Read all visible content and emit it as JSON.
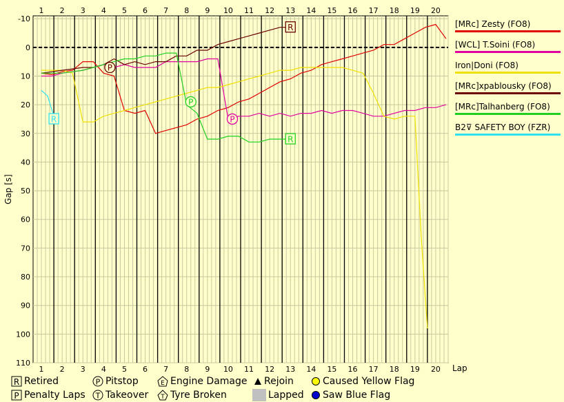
{
  "chart_data": {
    "type": "line",
    "title": "",
    "xlabel": "Lap",
    "ylabel": "Gap [s]",
    "x_ticks": [
      1,
      2,
      3,
      4,
      5,
      6,
      7,
      8,
      9,
      10,
      11,
      12,
      13,
      14,
      15,
      16,
      17,
      18,
      19,
      20
    ],
    "y_ticks": [
      -10,
      0,
      10,
      20,
      30,
      40,
      50,
      60,
      70,
      80,
      90,
      100,
      110
    ],
    "xlim": [
      0.6,
      20.6
    ],
    "ylim": [
      -11,
      110
    ],
    "grid": true,
    "legend_position": "right",
    "series": [
      {
        "name": "[MRc] Zesty (FO8)",
        "color": "#e00000",
        "points": [
          [
            1,
            9
          ],
          [
            1.5,
            9.5
          ],
          [
            2,
            8.5
          ],
          [
            2.5,
            8
          ],
          [
            3,
            5
          ],
          [
            3.5,
            5
          ],
          [
            4,
            9
          ],
          [
            4.5,
            10
          ],
          [
            5,
            22
          ],
          [
            5.5,
            23
          ],
          [
            6,
            22
          ],
          [
            6.5,
            30
          ],
          [
            7,
            29
          ],
          [
            7.5,
            28
          ],
          [
            8,
            27
          ],
          [
            8.5,
            25
          ],
          [
            9,
            24
          ],
          [
            9.5,
            22
          ],
          [
            10,
            21
          ],
          [
            10.5,
            19
          ],
          [
            11,
            18
          ],
          [
            11.5,
            16
          ],
          [
            12,
            14
          ],
          [
            12.5,
            12
          ],
          [
            13,
            11
          ],
          [
            13.5,
            9
          ],
          [
            14,
            8
          ],
          [
            14.5,
            6
          ],
          [
            15,
            5
          ],
          [
            15.5,
            4
          ],
          [
            16,
            3
          ],
          [
            16.5,
            2
          ],
          [
            17,
            1
          ],
          [
            17.5,
            -1
          ],
          [
            18,
            -1
          ],
          [
            18.5,
            -3
          ],
          [
            19,
            -5
          ],
          [
            19.5,
            -7
          ],
          [
            20,
            -8
          ],
          [
            20.5,
            -3
          ]
        ]
      },
      {
        "name": "[WCL] T.Soini (FO8)",
        "color": "#e000a0",
        "points": [
          [
            1,
            10
          ],
          [
            1.5,
            10
          ],
          [
            2,
            9
          ],
          [
            2.5,
            8.5
          ],
          [
            3,
            8
          ],
          [
            3.5,
            7
          ],
          [
            4,
            6
          ],
          [
            4.5,
            7
          ],
          [
            5,
            6
          ],
          [
            5.5,
            7
          ],
          [
            6,
            7
          ],
          [
            6.5,
            7
          ],
          [
            7,
            5
          ],
          [
            7.5,
            5
          ],
          [
            8,
            5
          ],
          [
            8.5,
            5
          ],
          [
            9,
            4
          ],
          [
            9.5,
            4
          ],
          [
            10,
            25
          ],
          [
            10.5,
            24
          ],
          [
            11,
            24
          ],
          [
            11.5,
            23
          ],
          [
            12,
            24
          ],
          [
            12.5,
            23
          ],
          [
            13,
            24
          ],
          [
            13.5,
            23
          ],
          [
            14,
            23
          ],
          [
            14.5,
            22
          ],
          [
            15,
            23
          ],
          [
            15.5,
            22
          ],
          [
            16,
            22
          ],
          [
            16.5,
            23
          ],
          [
            17,
            24
          ],
          [
            17.5,
            24
          ],
          [
            18,
            23
          ],
          [
            18.5,
            22
          ],
          [
            19,
            22
          ],
          [
            19.5,
            21
          ],
          [
            20,
            21
          ],
          [
            20.5,
            20
          ]
        ]
      },
      {
        "name": "Iron|Doni (FO8)",
        "color": "#f0e000",
        "points": [
          [
            1,
            8
          ],
          [
            1.5,
            8
          ],
          [
            2,
            8
          ],
          [
            2.5,
            9
          ],
          [
            3,
            26
          ],
          [
            3.5,
            26
          ],
          [
            4,
            24
          ],
          [
            4.5,
            23
          ],
          [
            5,
            22
          ],
          [
            5.5,
            21
          ],
          [
            6,
            20
          ],
          [
            6.5,
            19
          ],
          [
            7,
            18
          ],
          [
            7.5,
            17
          ],
          [
            8,
            16
          ],
          [
            8.5,
            15
          ],
          [
            9,
            14
          ],
          [
            9.5,
            14
          ],
          [
            10,
            13
          ],
          [
            10.5,
            12
          ],
          [
            11,
            11
          ],
          [
            11.5,
            10
          ],
          [
            12,
            9
          ],
          [
            12.5,
            8
          ],
          [
            13,
            8
          ],
          [
            13.5,
            7
          ],
          [
            14,
            7
          ],
          [
            14.5,
            7
          ],
          [
            15,
            7
          ],
          [
            15.5,
            7
          ],
          [
            16,
            8
          ],
          [
            16.5,
            9
          ],
          [
            17,
            16
          ],
          [
            17.5,
            24
          ],
          [
            18,
            25
          ],
          [
            18.5,
            24
          ],
          [
            19,
            24
          ],
          [
            19.3,
            66
          ],
          [
            19.6,
            98
          ]
        ]
      },
      {
        "name": "[MRc]xpablousky (FO8)",
        "color": "#6a0000",
        "points": [
          [
            1,
            9
          ],
          [
            1.5,
            8.5
          ],
          [
            2,
            8
          ],
          [
            2.5,
            7.5
          ],
          [
            3,
            7
          ],
          [
            3.5,
            7
          ],
          [
            4,
            6
          ],
          [
            4.5,
            4
          ],
          [
            5,
            6
          ],
          [
            5.5,
            5
          ],
          [
            6,
            6
          ],
          [
            6.5,
            5
          ],
          [
            7,
            5
          ],
          [
            7.5,
            3
          ],
          [
            8,
            3
          ],
          [
            8.5,
            1
          ],
          [
            9,
            1
          ],
          [
            9.5,
            -1
          ],
          [
            10,
            -2
          ],
          [
            10.5,
            -3
          ],
          [
            11,
            -4
          ],
          [
            11.5,
            -5
          ],
          [
            12,
            -6
          ],
          [
            12.5,
            -7
          ],
          [
            13,
            -7
          ]
        ]
      },
      {
        "name": "[MRc]Talhanberg (FO8)",
        "color": "#20d020",
        "points": [
          [
            1,
            9
          ],
          [
            1.5,
            9
          ],
          [
            2,
            9
          ],
          [
            2.5,
            8.5
          ],
          [
            3,
            8
          ],
          [
            3.5,
            7
          ],
          [
            4,
            6
          ],
          [
            4.5,
            5
          ],
          [
            5,
            4
          ],
          [
            5.5,
            4
          ],
          [
            6,
            3
          ],
          [
            6.5,
            3
          ],
          [
            7,
            2
          ],
          [
            7.5,
            2
          ],
          [
            8,
            20
          ],
          [
            8.5,
            23
          ],
          [
            9,
            32
          ],
          [
            9.5,
            32
          ],
          [
            10,
            31
          ],
          [
            10.5,
            31
          ],
          [
            11,
            33
          ],
          [
            11.5,
            33
          ],
          [
            12,
            32
          ],
          [
            12.5,
            32
          ],
          [
            13,
            32
          ]
        ]
      },
      {
        "name": "B2⊽ SAFETY BOY (FZR)",
        "color": "#30e0f0",
        "points": [
          [
            1,
            15
          ],
          [
            1.3,
            17
          ],
          [
            1.6,
            24
          ]
        ]
      }
    ],
    "annotations": [
      {
        "symbol": "R",
        "x": 13,
        "y": -7,
        "series": "[MRc]xpablousky (FO8)"
      },
      {
        "symbol": "P",
        "x": 4.3,
        "y": 7,
        "series": "[MRc]xpablousky (FO8)"
      },
      {
        "symbol": "P",
        "x": 8.2,
        "y": 19,
        "series": "[MRc]Talhanberg (FO8)"
      },
      {
        "symbol": "R",
        "x": 13,
        "y": 32,
        "series": "[MRc]Talhanberg (FO8)"
      },
      {
        "symbol": "P",
        "x": 10.2,
        "y": 25,
        "series": "[WCL] T.Soini (FO8)"
      },
      {
        "symbol": "R",
        "x": 1.6,
        "y": 25,
        "series": "B2⊽ SAFETY BOY (FZR)"
      }
    ]
  },
  "legend_keys": [
    {
      "sym": "R",
      "label": "Retired"
    },
    {
      "sym": "P",
      "label": "Pitstop"
    },
    {
      "sym": "engine",
      "label": "Engine Damage"
    },
    {
      "sym": "rejoin",
      "label": "Rejoin"
    },
    {
      "sym": "yellow",
      "label": "Caused Yellow Flag"
    },
    {
      "sym": "P",
      "label": "Penalty Laps"
    },
    {
      "sym": "T",
      "label": "Takeover"
    },
    {
      "sym": "tyre",
      "label": "Tyre Broken"
    },
    {
      "sym": "lapped",
      "label": "Lapped"
    },
    {
      "sym": "blue",
      "label": "Saw Blue Flag"
    }
  ]
}
